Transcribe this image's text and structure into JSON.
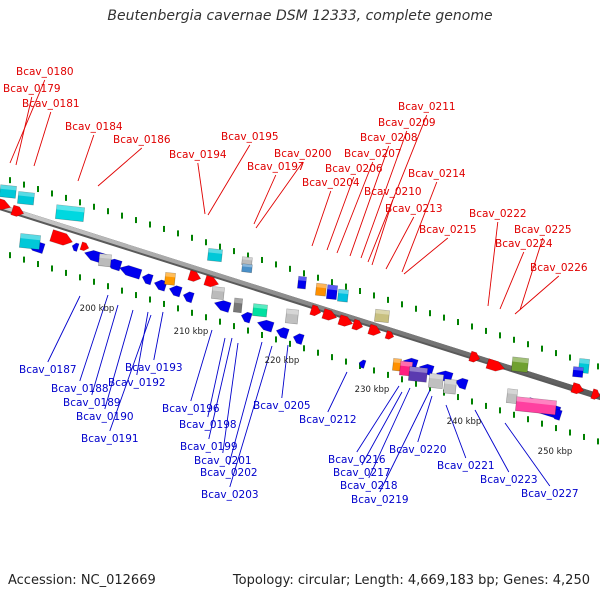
{
  "title": "Beutenbergia cavernae DSM 12333, complete genome",
  "footer": {
    "accession": "Accession: NC_012669",
    "summary": "Topology: circular; Length: 4,669,183 bp; Genes: 4,250"
  },
  "colors": {
    "backbone": "#8f8f8f",
    "upper_label": "#e00000",
    "lower_label": "#0000cc",
    "forward_gene": "#ff0000",
    "reverse_gene": "#0000ee",
    "tick": "#008000"
  },
  "scale_labels": [
    "200 kbp",
    "210 kbp",
    "220 kbp",
    "230 kbp",
    "240 kbp",
    "250 kbp"
  ],
  "upper_labels": [
    "Bcav_0180",
    "Bcav_0179",
    "Bcav_0181",
    "Bcav_0184",
    "Bcav_0186",
    "Bcav_0195",
    "Bcav_0194",
    "Bcav_0200",
    "Bcav_0197",
    "Bcav_0204",
    "Bcav_0211",
    "Bcav_0209",
    "Bcav_0208",
    "Bcav_0207",
    "Bcav_0206",
    "Bcav_0210",
    "Bcav_0214",
    "Bcav_0213",
    "Bcav_0215",
    "Bcav_0222",
    "Bcav_0225",
    "Bcav_0224",
    "Bcav_0226"
  ],
  "lower_labels": [
    "Bcav_0187",
    "Bcav_0188",
    "Bcav_0189",
    "Bcav_0190",
    "Bcav_0191",
    "Bcav_0193",
    "Bcav_0192",
    "Bcav_0196",
    "Bcav_0198",
    "Bcav_0199",
    "Bcav_0201",
    "Bcav_0202",
    "Bcav_0203",
    "Bcav_0205",
    "Bcav_0212",
    "Bcav_0216",
    "Bcav_0217",
    "Bcav_0218",
    "Bcav_0219",
    "Bcav_0220",
    "Bcav_0221",
    "Bcav_0223",
    "Bcav_0227"
  ]
}
